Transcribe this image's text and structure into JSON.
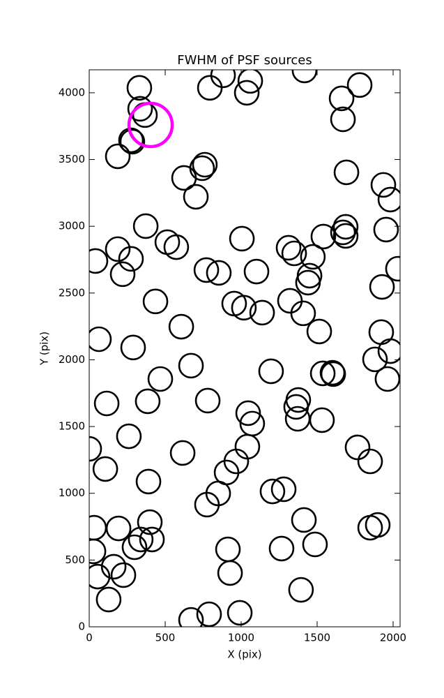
{
  "chart_data": {
    "type": "scatter",
    "title": "FWHM of PSF sources",
    "xlabel": "X (pix)",
    "ylabel": "Y (pix)",
    "xlim": [
      0,
      2046
    ],
    "ylim": [
      0,
      4172
    ],
    "xticks": [
      0,
      500,
      1000,
      1500,
      2000
    ],
    "yticks": [
      0,
      500,
      1000,
      1500,
      2000,
      2500,
      3000,
      3500,
      4000
    ],
    "series": [
      {
        "color": "#000000",
        "x": [
          330,
          881,
          1060,
          794,
          1037,
          1417,
          1780,
          1661,
          1670,
          335,
          367,
          275,
          284,
          188,
          761,
          743,
          624,
          702,
          1693,
          1936,
          1982,
          372,
          1005,
          514,
          573,
          188,
          275,
          41,
          220,
          771,
          853,
          1101,
          1541,
          1688,
          1670,
          1688,
          1312,
          1349,
          1472,
          1450,
          1440,
          1954,
          2032,
          1927,
          436,
          954,
          1018,
          1138,
          1321,
          1408,
          1514,
          606,
          1922,
          1982,
          1881,
          1963,
          64,
          289,
          670,
          468,
          1197,
          1537,
          1601,
          1606,
          115,
          385,
          780,
          1046,
          1073,
          1376,
          1362,
          1372,
          1532,
          0,
          261,
          615,
          106,
          1041,
          968,
          904,
          849,
          775,
          1206,
          1280,
          1766,
          1849,
          390,
          32,
          193,
          399,
          339,
          298,
          413,
          28,
          161,
          55,
          225,
          128,
          1413,
          1486,
          1266,
          913,
          927,
          1394,
          1849,
          1899,
          670,
          789,
          991
        ],
        "values": [
          4037,
          4131,
          4089,
          4037,
          4000,
          4167,
          4058,
          3958,
          3801,
          3880,
          3833,
          3644,
          3634,
          3524,
          3461,
          3435,
          3362,
          3221,
          3404,
          3310,
          3200,
          3001,
          2907,
          2881,
          2844,
          2829,
          2756,
          2740,
          2641,
          2672,
          2651,
          2661,
          2923,
          2996,
          2954,
          2928,
          2839,
          2797,
          2771,
          2630,
          2578,
          2975,
          2682,
          2546,
          2437,
          2421,
          2390,
          2353,
          2442,
          2348,
          2212,
          2248,
          2207,
          2065,
          2003,
          1856,
          2154,
          2092,
          1956,
          1856,
          1914,
          1898,
          1903,
          1893,
          1673,
          1689,
          1694,
          1600,
          1522,
          1699,
          1647,
          1558,
          1548,
          1333,
          1427,
          1302,
          1182,
          1349,
          1239,
          1156,
          999,
          915,
          1014,
          1030,
          1344,
          1239,
          1088,
          742,
          737,
          784,
          654,
          596,
          654,
          565,
          450,
          376,
          387,
          204,
          800,
          617,
          586,
          580,
          403,
          277,
          742,
          763,
          52,
          94,
          105
        ]
      },
      {
        "color": "#ff00ff",
        "x": [
          404
        ],
        "values": [
          3759
        ]
      }
    ]
  }
}
